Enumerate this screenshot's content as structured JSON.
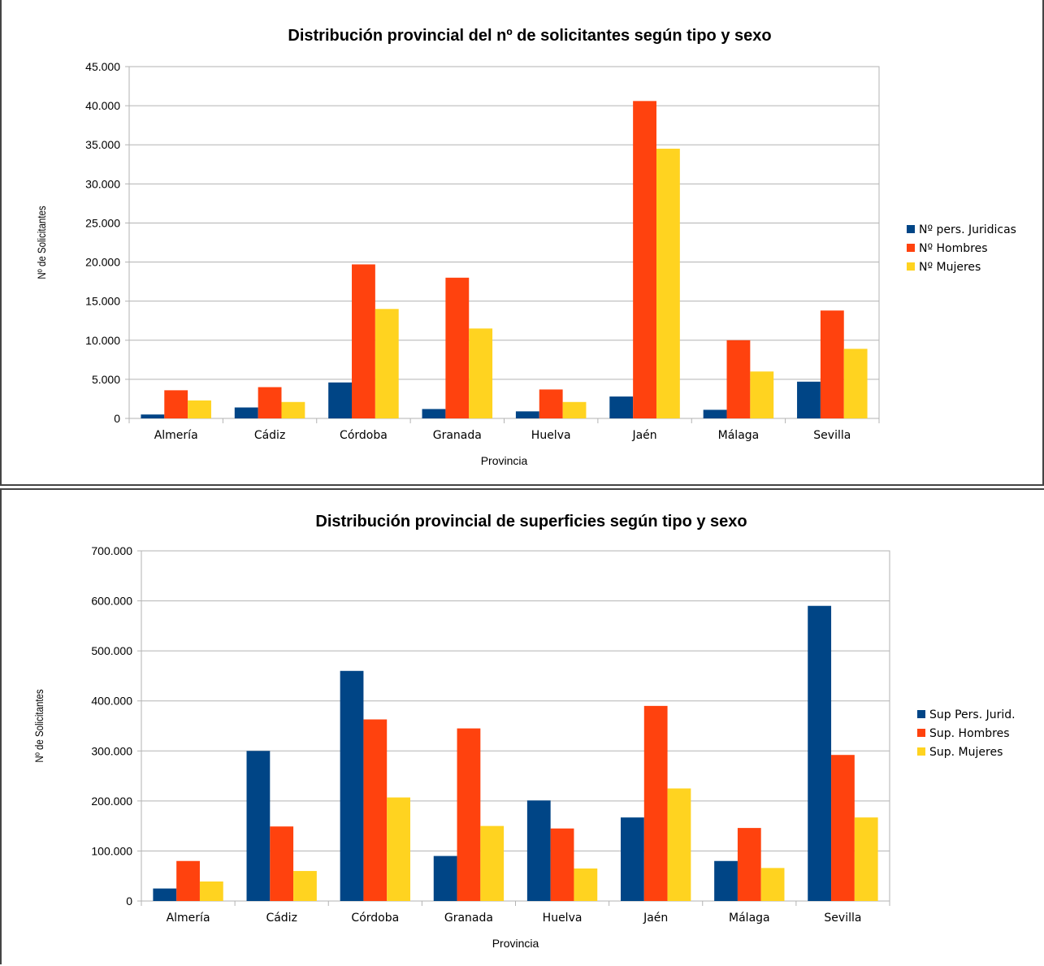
{
  "chart_data": [
    {
      "type": "bar",
      "title": "Distribución provincial del nº de solicitantes según tipo y sexo",
      "xlabel": "Provincia",
      "ylabel": "Nº de Solicitantes",
      "categories": [
        "Almería",
        "Cádiz",
        "Córdoba",
        "Granada",
        "Huelva",
        "Jaén",
        "Málaga",
        "Sevilla"
      ],
      "ylim": [
        0,
        45000
      ],
      "yticks": [
        "0",
        "5.000",
        "10.000",
        "15.000",
        "20.000",
        "25.000",
        "30.000",
        "35.000",
        "40.000",
        "45.000"
      ],
      "grid": true,
      "legend_position": "right",
      "series": [
        {
          "name": "Nº pers. Juridicas",
          "color": "#004586",
          "values": [
            500,
            1400,
            4600,
            1200,
            900,
            2800,
            1100,
            4700
          ]
        },
        {
          "name": "Nº  Hombres",
          "color": "#ff420e",
          "values": [
            3600,
            4000,
            19700,
            18000,
            3700,
            40600,
            10000,
            13800
          ]
        },
        {
          "name": "Nº  Mujeres",
          "color": "#ffd320",
          "values": [
            2300,
            2100,
            14000,
            11500,
            2100,
            34500,
            6000,
            8900
          ]
        }
      ]
    },
    {
      "type": "bar",
      "title": "Distribución provincial de superficies según tipo y sexo",
      "xlabel": "Provincia",
      "ylabel": "Nº de Solicitantes",
      "categories": [
        "Almería",
        "Cádiz",
        "Córdoba",
        "Granada",
        "Huelva",
        "Jaén",
        "Málaga",
        "Sevilla"
      ],
      "ylim": [
        0,
        700000
      ],
      "yticks": [
        "0",
        "100.000",
        "200.000",
        "300.000",
        "400.000",
        "500.000",
        "600.000",
        "700.000"
      ],
      "grid": true,
      "legend_position": "right",
      "series": [
        {
          "name": "Sup Pers. Jurid.",
          "color": "#004586",
          "values": [
            25000,
            300000,
            460000,
            90000,
            201000,
            167000,
            80000,
            590000
          ]
        },
        {
          "name": "Sup. Hombres",
          "color": "#ff420e",
          "values": [
            80000,
            149000,
            363000,
            345000,
            145000,
            390000,
            146000,
            292000
          ]
        },
        {
          "name": "Sup. Mujeres",
          "color": "#ffd320",
          "values": [
            39000,
            60000,
            207000,
            150000,
            65000,
            225000,
            66000,
            167000
          ]
        }
      ]
    }
  ]
}
